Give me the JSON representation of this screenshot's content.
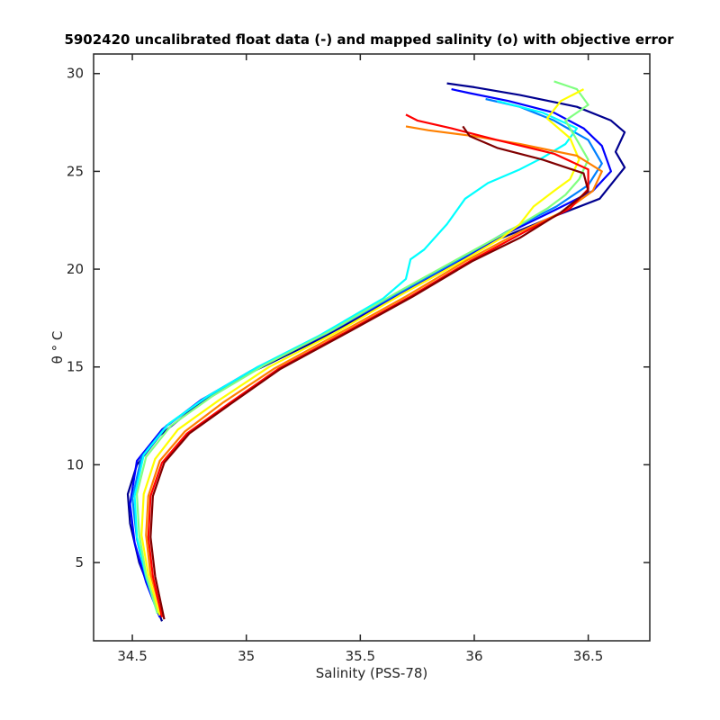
{
  "chart_data": {
    "type": "line",
    "title": "5902420 uncalibrated float data (-) and mapped salinity (o) with objective error",
    "xlabel": "Salinity (PSS-78)",
    "ylabel": "θ ° C",
    "xlim": [
      34.33,
      36.77
    ],
    "ylim": [
      1.0,
      31.0
    ],
    "xticks": [
      34.5,
      35,
      35.5,
      36,
      36.5
    ],
    "xtick_labels": [
      "34.5",
      "35",
      "35.5",
      "36",
      "36.5"
    ],
    "yticks": [
      5,
      10,
      15,
      20,
      25,
      30
    ],
    "ytick_labels": [
      "5",
      "10",
      "15",
      "20",
      "25",
      "30"
    ],
    "grid": false,
    "colormap": [
      "#00008f",
      "#0000ff",
      "#0080ff",
      "#00ffff",
      "#80ff80",
      "#ffff00",
      "#ff8000",
      "#ff0000",
      "#800000"
    ],
    "series": [
      {
        "color": "#00008f",
        "points": [
          [
            34.63,
            2.0
          ],
          [
            34.58,
            3.5
          ],
          [
            34.53,
            5.0
          ],
          [
            34.49,
            7.0
          ],
          [
            34.48,
            8.5
          ],
          [
            34.52,
            10.0
          ],
          [
            34.62,
            11.5
          ],
          [
            34.78,
            13.0
          ],
          [
            35.0,
            14.6
          ],
          [
            35.3,
            16.3
          ],
          [
            35.6,
            18.2
          ],
          [
            35.88,
            20.0
          ],
          [
            36.1,
            21.5
          ],
          [
            36.35,
            22.7
          ],
          [
            36.55,
            23.6
          ],
          [
            36.66,
            25.2
          ],
          [
            36.62,
            26.0
          ],
          [
            36.66,
            27.0
          ],
          [
            36.6,
            27.6
          ],
          [
            36.45,
            28.3
          ],
          [
            36.2,
            28.9
          ],
          [
            36.0,
            29.3
          ],
          [
            35.88,
            29.5
          ]
        ]
      },
      {
        "color": "#0000ff",
        "points": [
          [
            34.62,
            2.2
          ],
          [
            34.56,
            4.0
          ],
          [
            34.51,
            6.0
          ],
          [
            34.49,
            8.0
          ],
          [
            34.52,
            10.2
          ],
          [
            34.63,
            11.8
          ],
          [
            34.8,
            13.3
          ],
          [
            35.02,
            14.8
          ],
          [
            35.32,
            16.5
          ],
          [
            35.62,
            18.4
          ],
          [
            35.9,
            20.2
          ],
          [
            36.12,
            21.7
          ],
          [
            36.35,
            23.0
          ],
          [
            36.52,
            24.0
          ],
          [
            36.6,
            25.0
          ],
          [
            36.56,
            26.3
          ],
          [
            36.48,
            27.2
          ],
          [
            36.35,
            28.0
          ],
          [
            36.15,
            28.6
          ],
          [
            35.98,
            29.0
          ],
          [
            35.9,
            29.2
          ]
        ]
      },
      {
        "color": "#0080ff",
        "points": [
          [
            34.62,
            2.3
          ],
          [
            34.56,
            4.2
          ],
          [
            34.52,
            6.2
          ],
          [
            34.5,
            8.3
          ],
          [
            34.54,
            10.4
          ],
          [
            34.65,
            12.0
          ],
          [
            34.82,
            13.4
          ],
          [
            35.05,
            15.0
          ],
          [
            35.35,
            16.7
          ],
          [
            35.64,
            18.6
          ],
          [
            35.92,
            20.4
          ],
          [
            36.14,
            21.9
          ],
          [
            36.36,
            23.2
          ],
          [
            36.5,
            24.3
          ],
          [
            36.56,
            25.4
          ],
          [
            36.5,
            26.6
          ],
          [
            36.35,
            27.6
          ],
          [
            36.2,
            28.3
          ],
          [
            36.05,
            28.7
          ]
        ]
      },
      {
        "color": "#00ffff",
        "points": [
          [
            34.61,
            2.4
          ],
          [
            34.56,
            4.3
          ],
          [
            34.52,
            6.3
          ],
          [
            34.51,
            8.4
          ],
          [
            34.55,
            10.5
          ],
          [
            34.66,
            12.1
          ],
          [
            34.83,
            13.5
          ],
          [
            35.05,
            15.0
          ],
          [
            35.32,
            16.6
          ],
          [
            35.6,
            18.5
          ],
          [
            35.7,
            19.5
          ],
          [
            35.72,
            20.5
          ],
          [
            35.78,
            21.0
          ],
          [
            35.88,
            22.3
          ],
          [
            35.96,
            23.6
          ],
          [
            36.06,
            24.4
          ],
          [
            36.2,
            25.1
          ],
          [
            36.3,
            25.7
          ],
          [
            36.4,
            26.4
          ],
          [
            36.45,
            27.2
          ],
          [
            36.3,
            28.0
          ],
          [
            36.1,
            28.6
          ]
        ]
      },
      {
        "color": "#80ff80",
        "points": [
          [
            34.61,
            2.4
          ],
          [
            34.56,
            4.4
          ],
          [
            34.53,
            6.4
          ],
          [
            34.52,
            8.5
          ],
          [
            34.56,
            10.4
          ],
          [
            34.67,
            12.0
          ],
          [
            34.85,
            13.5
          ],
          [
            35.08,
            15.1
          ],
          [
            35.38,
            16.9
          ],
          [
            35.66,
            18.8
          ],
          [
            35.94,
            20.6
          ],
          [
            36.16,
            22.0
          ],
          [
            36.32,
            23.1
          ],
          [
            36.4,
            23.8
          ],
          [
            36.46,
            24.6
          ],
          [
            36.5,
            25.6
          ],
          [
            36.45,
            26.6
          ],
          [
            36.4,
            27.6
          ],
          [
            36.5,
            28.4
          ],
          [
            36.45,
            29.2
          ],
          [
            36.35,
            29.6
          ]
        ]
      },
      {
        "color": "#ffff00",
        "points": [
          [
            34.62,
            2.3
          ],
          [
            34.57,
            4.4
          ],
          [
            34.54,
            6.4
          ],
          [
            34.55,
            8.5
          ],
          [
            34.6,
            10.3
          ],
          [
            34.7,
            11.8
          ],
          [
            34.88,
            13.3
          ],
          [
            35.1,
            15.0
          ],
          [
            35.4,
            16.8
          ],
          [
            35.68,
            18.7
          ],
          [
            35.96,
            20.5
          ],
          [
            36.12,
            21.6
          ],
          [
            36.2,
            22.3
          ],
          [
            36.26,
            23.2
          ],
          [
            36.35,
            24.0
          ],
          [
            36.42,
            24.6
          ],
          [
            36.46,
            25.6
          ],
          [
            36.42,
            26.7
          ],
          [
            36.32,
            27.7
          ],
          [
            36.38,
            28.6
          ],
          [
            36.48,
            29.2
          ]
        ]
      },
      {
        "color": "#ff8000",
        "points": [
          [
            34.63,
            2.3
          ],
          [
            34.58,
            4.4
          ],
          [
            34.56,
            6.4
          ],
          [
            34.57,
            8.4
          ],
          [
            34.62,
            10.2
          ],
          [
            34.73,
            11.7
          ],
          [
            34.9,
            13.2
          ],
          [
            35.12,
            14.9
          ],
          [
            35.42,
            16.8
          ],
          [
            35.7,
            18.6
          ],
          [
            35.96,
            20.4
          ],
          [
            36.2,
            21.9
          ],
          [
            36.4,
            23.0
          ],
          [
            36.52,
            24.0
          ],
          [
            36.56,
            25.0
          ],
          [
            36.45,
            25.8
          ],
          [
            36.2,
            26.4
          ],
          [
            36.0,
            26.8
          ],
          [
            35.8,
            27.1
          ],
          [
            35.7,
            27.3
          ]
        ]
      },
      {
        "color": "#ff0000",
        "points": [
          [
            34.63,
            2.2
          ],
          [
            34.59,
            4.3
          ],
          [
            34.57,
            6.3
          ],
          [
            34.58,
            8.4
          ],
          [
            34.63,
            10.1
          ],
          [
            34.74,
            11.6
          ],
          [
            34.92,
            13.1
          ],
          [
            35.14,
            14.9
          ],
          [
            35.44,
            16.8
          ],
          [
            35.72,
            18.6
          ],
          [
            35.98,
            20.4
          ],
          [
            36.22,
            21.9
          ],
          [
            36.42,
            23.1
          ],
          [
            36.5,
            24.1
          ],
          [
            36.5,
            25.1
          ],
          [
            36.35,
            25.9
          ],
          [
            36.1,
            26.6
          ],
          [
            35.9,
            27.2
          ],
          [
            35.75,
            27.6
          ],
          [
            35.7,
            27.9
          ]
        ]
      },
      {
        "color": "#800000",
        "points": [
          [
            34.64,
            2.1
          ],
          [
            34.6,
            4.3
          ],
          [
            34.58,
            6.3
          ],
          [
            34.59,
            8.4
          ],
          [
            34.64,
            10.1
          ],
          [
            34.75,
            11.6
          ],
          [
            34.93,
            13.1
          ],
          [
            35.15,
            14.9
          ],
          [
            35.45,
            16.8
          ],
          [
            35.73,
            18.6
          ],
          [
            35.99,
            20.4
          ],
          [
            36.2,
            21.6
          ],
          [
            36.38,
            22.9
          ],
          [
            36.5,
            24.0
          ],
          [
            36.48,
            24.9
          ],
          [
            36.3,
            25.6
          ],
          [
            36.1,
            26.2
          ],
          [
            35.98,
            26.8
          ],
          [
            35.95,
            27.3
          ]
        ]
      }
    ]
  }
}
